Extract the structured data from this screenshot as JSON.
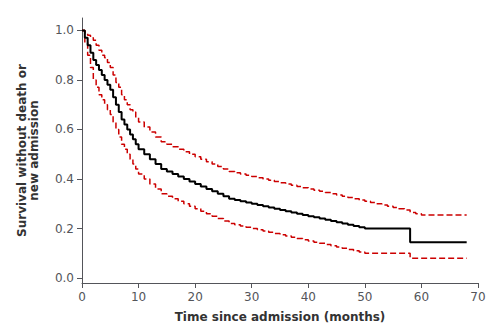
{
  "chart_data": {
    "type": "step",
    "x": [
      0,
      0.5,
      1,
      1.5,
      2,
      2.5,
      3,
      3.5,
      4,
      4.5,
      5,
      5.5,
      6,
      6.5,
      7,
      7.5,
      8,
      8.5,
      9,
      9.5,
      10,
      11,
      12,
      13,
      14,
      15,
      16,
      17,
      18,
      19,
      20,
      21,
      22,
      23,
      24,
      25,
      26,
      27,
      28,
      29,
      30,
      31,
      32,
      33,
      34,
      35,
      36,
      37,
      38,
      39,
      40,
      41,
      42,
      43,
      44,
      45,
      46,
      47,
      48,
      49,
      50,
      51,
      52,
      53,
      54,
      55,
      56,
      57,
      58,
      59,
      60,
      61,
      62,
      63,
      64,
      65,
      66,
      67,
      68
    ],
    "series": [
      {
        "color": "#000000",
        "line_style": "solid",
        "values": [
          1.0,
          0.97,
          0.94,
          0.91,
          0.88,
          0.86,
          0.84,
          0.82,
          0.8,
          0.78,
          0.76,
          0.73,
          0.7,
          0.67,
          0.64,
          0.62,
          0.6,
          0.58,
          0.56,
          0.54,
          0.52,
          0.5,
          0.48,
          0.46,
          0.44,
          0.43,
          0.42,
          0.41,
          0.4,
          0.39,
          0.38,
          0.37,
          0.36,
          0.35,
          0.34,
          0.33,
          0.32,
          0.315,
          0.31,
          0.305,
          0.3,
          0.295,
          0.29,
          0.285,
          0.28,
          0.275,
          0.27,
          0.265,
          0.26,
          0.255,
          0.25,
          0.245,
          0.24,
          0.235,
          0.23,
          0.225,
          0.22,
          0.215,
          0.21,
          0.205,
          0.2,
          0.2,
          0.2,
          0.2,
          0.2,
          0.2,
          0.2,
          0.2,
          0.145,
          0.145,
          0.145,
          0.145,
          0.145,
          0.145,
          0.145,
          0.145,
          0.145,
          0.145,
          0.145
        ]
      },
      {
        "color": "#cc0000",
        "line_style": "dashed",
        "values": [
          1.0,
          0.99,
          0.98,
          0.97,
          0.96,
          0.94,
          0.92,
          0.9,
          0.89,
          0.87,
          0.85,
          0.82,
          0.79,
          0.77,
          0.74,
          0.72,
          0.7,
          0.68,
          0.67,
          0.65,
          0.63,
          0.61,
          0.59,
          0.57,
          0.55,
          0.54,
          0.53,
          0.52,
          0.51,
          0.5,
          0.49,
          0.48,
          0.47,
          0.46,
          0.45,
          0.44,
          0.43,
          0.425,
          0.42,
          0.415,
          0.41,
          0.405,
          0.4,
          0.395,
          0.39,
          0.385,
          0.38,
          0.375,
          0.37,
          0.365,
          0.36,
          0.355,
          0.35,
          0.345,
          0.34,
          0.335,
          0.33,
          0.325,
          0.32,
          0.315,
          0.31,
          0.305,
          0.3,
          0.295,
          0.29,
          0.285,
          0.28,
          0.275,
          0.265,
          0.26,
          0.255,
          0.255,
          0.255,
          0.255,
          0.255,
          0.255,
          0.255,
          0.255,
          0.255
        ]
      },
      {
        "color": "#cc0000",
        "line_style": "dashed",
        "values": [
          1.0,
          0.95,
          0.9,
          0.85,
          0.8,
          0.77,
          0.74,
          0.72,
          0.7,
          0.68,
          0.66,
          0.63,
          0.6,
          0.57,
          0.54,
          0.52,
          0.5,
          0.48,
          0.46,
          0.44,
          0.42,
          0.4,
          0.38,
          0.36,
          0.34,
          0.33,
          0.32,
          0.31,
          0.3,
          0.29,
          0.28,
          0.27,
          0.26,
          0.25,
          0.24,
          0.23,
          0.22,
          0.215,
          0.21,
          0.205,
          0.2,
          0.195,
          0.19,
          0.185,
          0.18,
          0.175,
          0.17,
          0.165,
          0.16,
          0.155,
          0.15,
          0.145,
          0.14,
          0.135,
          0.13,
          0.125,
          0.12,
          0.115,
          0.11,
          0.105,
          0.1,
          0.1,
          0.1,
          0.1,
          0.1,
          0.1,
          0.1,
          0.1,
          0.08,
          0.08,
          0.08,
          0.08,
          0.08,
          0.08,
          0.08,
          0.08,
          0.08,
          0.08,
          0.08
        ]
      }
    ],
    "xlabel": "Time since admission (months)",
    "ylabel": "Survival without death or\nnew admission",
    "xlim": [
      0,
      70
    ],
    "xticks": [
      0,
      10,
      20,
      30,
      40,
      50,
      60,
      70
    ],
    "ylim": [
      -0.02,
      1.05
    ],
    "yticks": [
      {
        "value": 0.0,
        "label": "0.0"
      },
      0.2,
      0.4,
      0.6,
      0.8,
      {
        "value": 1.0,
        "label": "1.0"
      }
    ],
    "grid": false
  }
}
